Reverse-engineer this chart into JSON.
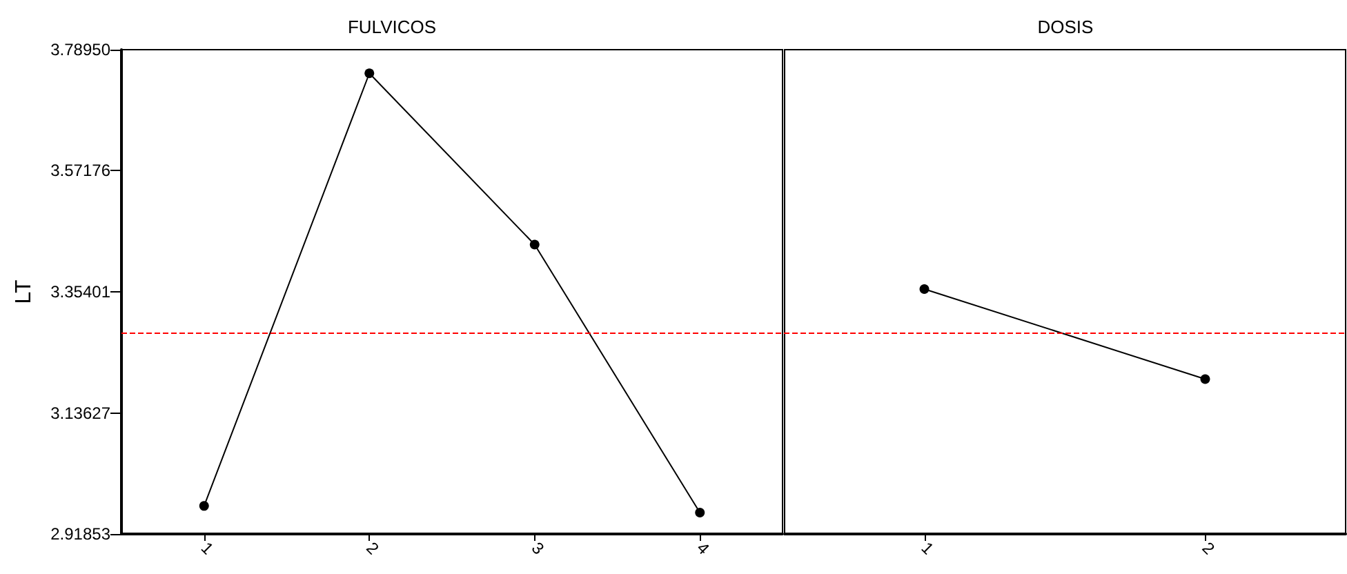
{
  "chart_data": [
    {
      "type": "line",
      "title": "FULVICOS",
      "ylabel": "LT",
      "categories": [
        "1",
        "2",
        "3",
        "4"
      ],
      "series": [
        {
          "color": "#000000",
          "values": [
            2.969,
            3.747,
            3.439,
            2.957
          ]
        }
      ],
      "ylim": [
        2.91853,
        3.7895
      ],
      "yticks": [
        2.91853,
        3.13627,
        3.35401,
        3.57176,
        {
          "value": 3.7895,
          "label": "3.78950"
        }
      ],
      "ref_lines": [
        {
          "axis": "y",
          "value": 3.278,
          "color": "#ff0000",
          "line_style": "dashed"
        }
      ],
      "marker": "circle",
      "grid": false
    },
    {
      "type": "line",
      "title": "DOSIS",
      "categories": [
        "1",
        "2"
      ],
      "series": [
        {
          "color": "#000000",
          "values": [
            3.359,
            3.197
          ]
        }
      ],
      "ylim": [
        2.91853,
        3.7895
      ],
      "ref_lines": [
        {
          "axis": "y",
          "value": 3.278,
          "color": "#ff0000",
          "line_style": "dashed"
        }
      ],
      "marker": "circle",
      "grid": false,
      "tick_labels": "x"
    }
  ]
}
